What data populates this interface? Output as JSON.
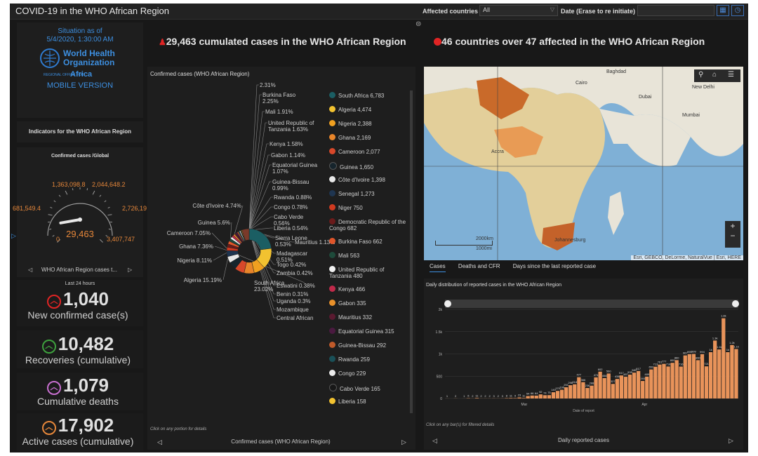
{
  "header": {
    "title": "COVID-19 in the WHO African Region",
    "affected_label": "Affected countries",
    "affected_value": "All",
    "date_label": "Date (Erase to re initiate)"
  },
  "left": {
    "situation": "Situation as of",
    "datetime": "5/4/2020, 1:30:00 AM",
    "who_line1": "World Health",
    "who_line2": "Organization",
    "who_small": "REGIONAL OFFICE FOR",
    "who_region": "Africa",
    "mobile": "MOBILE VERSION",
    "indicators": "Indicators for the WHO African Region",
    "gauge_title": "Confirmed cases /Global",
    "gauge_labels": [
      "0",
      "681,549.4",
      "1,363,098.8",
      "2,044,648.2",
      "2,726,19",
      "3,407,747"
    ],
    "gauge_value": "29,463",
    "gauge_value_fraction": 0.0086,
    "gauge_nav": "WHO African Region cases t...",
    "last24": "Last 24 hours",
    "stats": [
      {
        "value": "1,040",
        "caption": "New confirmed case(s)",
        "color": "#e02424",
        "icon": "chevron-up-icon"
      },
      {
        "value": "10,482",
        "caption": "Recoveries (cumulative)",
        "color": "#3ea13e",
        "icon": "chevron-up-icon"
      },
      {
        "value": "1,079",
        "caption": "Cumulative deaths",
        "color": "#c86fd0",
        "icon": "chevron-up-icon"
      },
      {
        "value": "17,902",
        "caption": "Active cases (cumulative)",
        "color": "#e6873a",
        "icon": "chevron-up-icon"
      }
    ]
  },
  "middle": {
    "headline": "29,463 cumulated cases in the WHO African Region",
    "chart_title": "Confirmed cases  (WHO African Region)",
    "footer_hint": "Click on any portion for details",
    "footer_nav": "Confirmed cases (WHO African Region)",
    "donut_labels": [
      "2.31%",
      "Burkina Faso 2.25%",
      "Mali 1.91%",
      "United Republic of Tanzania 1.63%",
      "Kenya 1.58%",
      "Gabon 1.14%",
      "Equatorial Guinea 1.07%",
      "Guinea-Bissau 0.99%",
      "Rwanda 0.88%",
      "Congo 0.78%",
      "Cabo Verde 0.56%",
      "Liberia 0.54%",
      "Sierra Leone 0.53%",
      "Mauritius 1.13%",
      "Madagascar 0.51%",
      "Togo 0.42%",
      "Zambia 0.42%",
      "Eswatini 0.38%",
      "Benin 0.31%",
      "Uganda 0.3%",
      "Mozambique",
      "Central African",
      "Côte d'Ivoire 4.74%",
      "Guinea 5.6%",
      "Cameroon 7.05%",
      "Ghana 7.36%",
      "Nigeria 8.11%",
      "Algeria 15.19%",
      "South Africa 23.02%"
    ]
  },
  "legend": [
    {
      "name": "South Africa",
      "value": "6,783",
      "color": "#1b5e63"
    },
    {
      "name": "Algeria",
      "value": "4,474",
      "color": "#f2c230"
    },
    {
      "name": "Nigeria",
      "value": "2,388",
      "color": "#f0a020"
    },
    {
      "name": "Ghana",
      "value": "2,169",
      "color": "#e8852a"
    },
    {
      "name": "Cameroon",
      "value": "2,077",
      "color": "#d8482a"
    },
    {
      "name": "Guinea",
      "value": "1,650",
      "color": "#16242c"
    },
    {
      "name": "Côte d'Ivoire",
      "value": "1,398",
      "color": "#e8e8e8"
    },
    {
      "name": "Senegal",
      "value": "1,273",
      "color": "#1f3550"
    },
    {
      "name": "Niger",
      "value": "750",
      "color": "#d03a20"
    },
    {
      "name": "Democratic Republic of the Congo",
      "value": "682",
      "color": "#6a1b1b"
    },
    {
      "name": "Burkina Faso",
      "value": "662",
      "color": "#e0552a"
    },
    {
      "name": "Mali",
      "value": "563",
      "color": "#1e4a3a"
    },
    {
      "name": "United Republic of Tanzania",
      "value": "480",
      "color": "#f0f0f0"
    },
    {
      "name": "Kenya",
      "value": "466",
      "color": "#c02a4a"
    },
    {
      "name": "Gabon",
      "value": "335",
      "color": "#e8902a"
    },
    {
      "name": "Mauritius",
      "value": "332",
      "color": "#5a1a30"
    },
    {
      "name": "Equatorial Guinea",
      "value": "315",
      "color": "#4a1a40"
    },
    {
      "name": "Guinea-Bissau",
      "value": "292",
      "color": "#c05a2a"
    },
    {
      "name": "Rwanda",
      "value": "259",
      "color": "#1a5058"
    },
    {
      "name": "Congo",
      "value": "229",
      "color": "#ececec"
    },
    {
      "name": "Cabo Verde",
      "value": "165",
      "color": "#181818"
    },
    {
      "name": "Liberia",
      "value": "158",
      "color": "#f2c230"
    }
  ],
  "right": {
    "headline": "46 countries over 47 affected in the WHO African Region",
    "map_labels": [
      "Baghdad",
      "Cairo",
      "Dubai",
      "New Delhi",
      "Mumbai",
      "Accra",
      "Johannesburg"
    ],
    "map_scale": [
      "2000km",
      "1000mi"
    ],
    "map_attrib": "Esri, GEBCO, DeLorme, NaturalVue | Esri, HERE",
    "tabs": [
      "Cases",
      "Deaths and CFR",
      "Days since the last reported case"
    ],
    "chart_title": "Daily distribution of reported cases in the WHO African Region",
    "footer_hint": "Click on any bar(s) for filtered details",
    "footer_nav": "Daily reported cases"
  },
  "chart_data": {
    "type": "bar",
    "title": "Daily distribution of reported cases in the WHO African Region",
    "xlabel": "Date of report",
    "ylabel": "",
    "ylim": [
      0,
      2000
    ],
    "yticks": [
      "0",
      "500",
      "1k",
      "1.5k",
      "2k"
    ],
    "xticks": [
      "Mar",
      "Apr"
    ],
    "values": [
      1,
      0,
      2,
      0,
      1,
      6,
      2,
      11,
      2,
      2,
      2,
      3,
      2,
      3,
      8,
      11,
      9,
      23,
      11,
      54,
      66,
      64,
      92,
      74,
      75,
      140,
      170,
      196,
      251,
      298,
      318,
      477,
      366,
      236,
      288,
      474,
      602,
      458,
      560,
      327,
      438,
      517,
      487,
      535,
      580,
      617,
      393,
      489,
      652,
      713,
      761,
      777,
      718,
      800,
      860,
      716,
      967,
      995,
      999,
      860,
      994,
      721,
      1040,
      1300,
      1100,
      1800,
      1040,
      1200,
      1110
    ]
  }
}
